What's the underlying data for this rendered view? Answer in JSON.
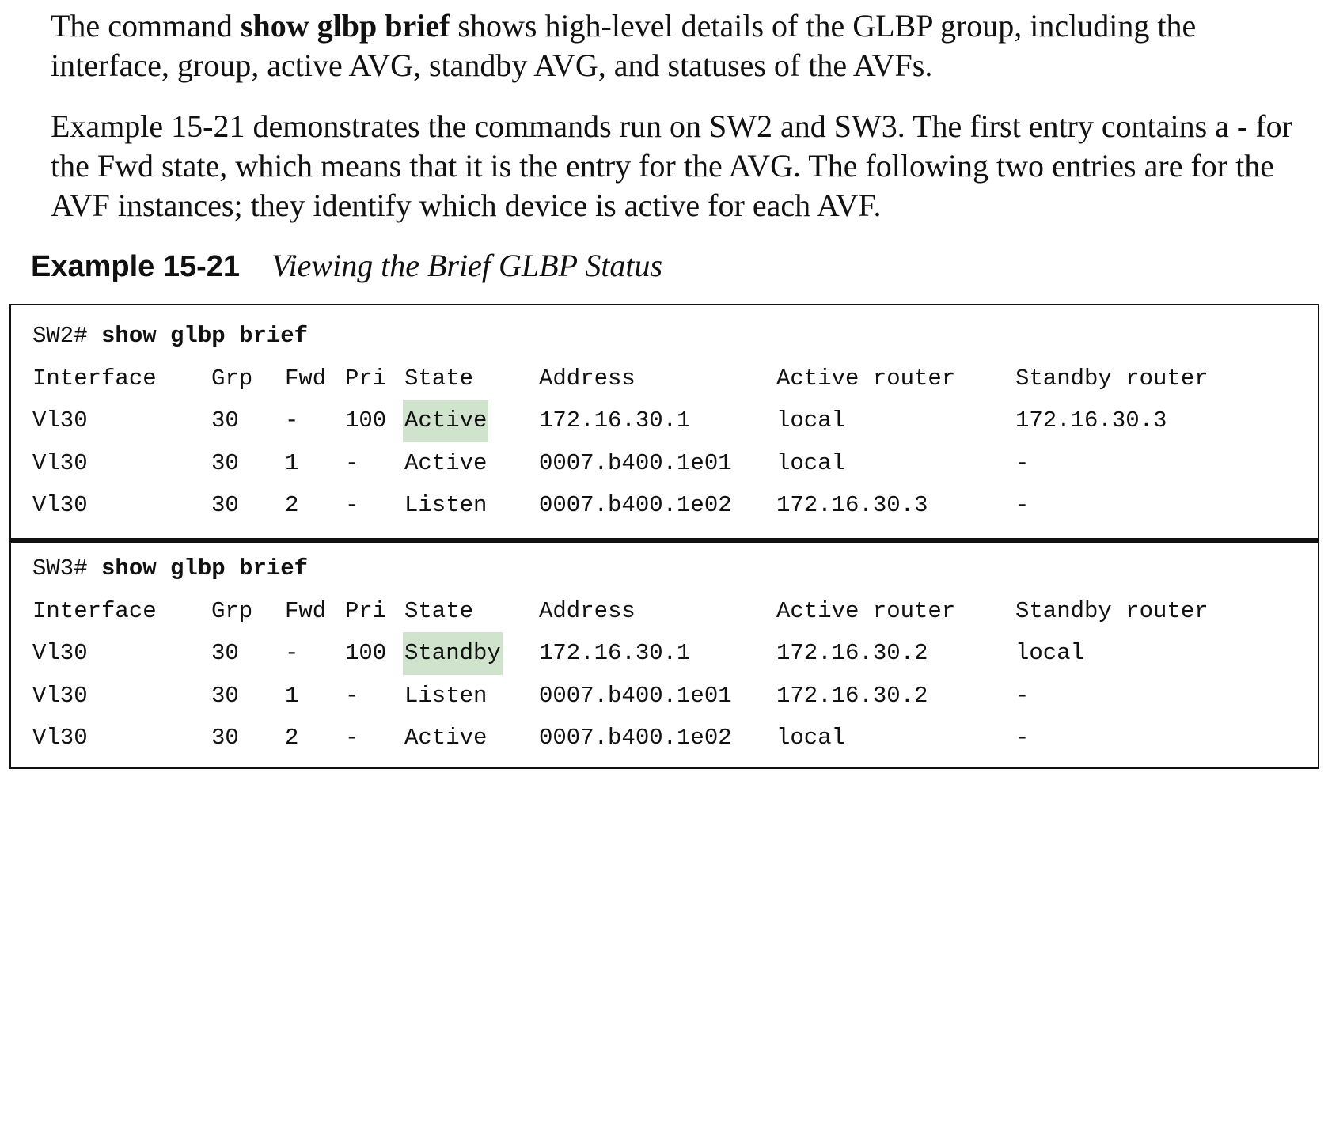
{
  "intro": {
    "p1_pre": "The command ",
    "p1_bold": "show glbp brief",
    "p1_post": " shows high-level details of the GLBP group, including the interface, group, active AVG, standby AVG, and statuses of the AVFs.",
    "p2": "Example 15-21 demonstrates the commands run on SW2 and SW3. The first entry contains a - for the Fwd state, which means that it is the entry for the AVG. The following two entries are for the AVF instances; they identify which device is active for each AVF."
  },
  "caption": {
    "label": "Example 15-21",
    "title": "Viewing the Brief GLBP Status"
  },
  "headers": [
    "Interface",
    "Grp",
    "Fwd",
    "Pri",
    "State",
    "Address",
    "Active router",
    "Standby router"
  ],
  "highlight_color": "#cfe3cd",
  "sections": [
    {
      "prompt": "SW2# ",
      "command": "show glbp brief",
      "rows": [
        [
          "Vl30",
          "30",
          "-",
          "100",
          "Active",
          "172.16.30.1",
          "local",
          "172.16.30.3"
        ],
        [
          "Vl30",
          "30",
          "1",
          "-",
          "Active",
          "0007.b400.1e01",
          "local",
          "-"
        ],
        [
          "Vl30",
          "30",
          "2",
          "-",
          "Listen",
          "0007.b400.1e02",
          "172.16.30.3",
          "-"
        ]
      ]
    },
    {
      "prompt": "SW3# ",
      "command": "show glbp brief",
      "rows": [
        [
          "Vl30",
          "30",
          "-",
          "100",
          "Standby",
          "172.16.30.1",
          "172.16.30.2",
          "local"
        ],
        [
          "Vl30",
          "30",
          "1",
          "-",
          "Listen",
          "0007.b400.1e01",
          "172.16.30.2",
          "-"
        ],
        [
          "Vl30",
          "30",
          "2",
          "-",
          "Active",
          "0007.b400.1e02",
          "local",
          "-"
        ]
      ]
    }
  ]
}
